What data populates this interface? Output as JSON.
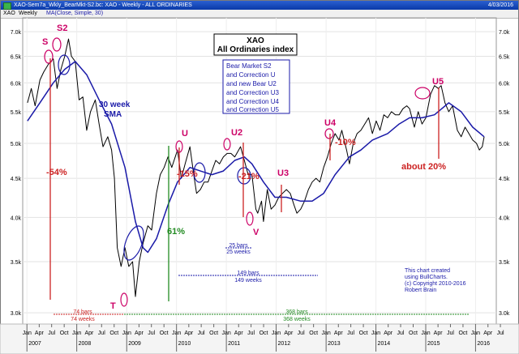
{
  "window": {
    "title": "XAO-Sem7a_Wkly_BearMkt-S2.bc: XAO - Weekly - ALL ORDINARIES",
    "date": "4/03/2016",
    "symbol": "XAO",
    "period": "Weekly",
    "indicator": "MA(Close, Simple, 30)"
  },
  "chart_data": {
    "type": "line",
    "title": "XAO",
    "subtitle": "All Ordinaries index",
    "scale": "log",
    "ylim": [
      2900,
      7300
    ],
    "y_ticks": [
      3000,
      3500,
      4000,
      4500,
      5000,
      5500,
      6000,
      6500,
      7000
    ],
    "y_tick_labels": [
      "3.0k",
      "3.5k",
      "4.0k",
      "4.5k",
      "5.0k",
      "5.5k",
      "6.0k",
      "6.5k",
      "7.0k"
    ],
    "years": [
      "2007",
      "2008",
      "2009",
      "2010",
      "2011",
      "2012",
      "2013",
      "2014",
      "2015",
      "2016"
    ],
    "months": [
      "Jan",
      "Apr",
      "Jul",
      "Oct"
    ],
    "x_start": "2006-12-01",
    "x_end": "2016-06-01",
    "series": [
      {
        "name": "",
        "color": "#000000",
        "points": [
          [
            "2007-01-05",
            5650
          ],
          [
            "2007-02-02",
            5900
          ],
          [
            "2007-03-02",
            5600
          ],
          [
            "2007-04-06",
            6050
          ],
          [
            "2007-05-04",
            6200
          ],
          [
            "2007-06-08",
            6350
          ],
          [
            "2007-07-13",
            6450
          ],
          [
            "2007-08-10",
            5900
          ],
          [
            "2007-09-07",
            6250
          ],
          [
            "2007-10-05",
            6500
          ],
          [
            "2007-11-02",
            6850
          ],
          [
            "2007-11-23",
            6500
          ],
          [
            "2007-12-21",
            6400
          ],
          [
            "2008-01-18",
            5700
          ],
          [
            "2008-02-15",
            5750
          ],
          [
            "2008-03-14",
            5200
          ],
          [
            "2008-04-11",
            5500
          ],
          [
            "2008-05-16",
            5700
          ],
          [
            "2008-06-13",
            5300
          ],
          [
            "2008-07-11",
            4950
          ],
          [
            "2008-08-15",
            5100
          ],
          [
            "2008-09-12",
            4900
          ],
          [
            "2008-10-03",
            4500
          ],
          [
            "2008-10-24",
            3650
          ],
          [
            "2008-11-21",
            3450
          ],
          [
            "2008-12-19",
            3650
          ],
          [
            "2009-01-16",
            3450
          ],
          [
            "2009-02-13",
            3500
          ],
          [
            "2009-03-06",
            3150
          ],
          [
            "2009-04-03",
            3500
          ],
          [
            "2009-05-01",
            3700
          ],
          [
            "2009-06-05",
            3900
          ],
          [
            "2009-07-03",
            3850
          ],
          [
            "2009-08-07",
            4300
          ],
          [
            "2009-09-04",
            4550
          ],
          [
            "2009-10-02",
            4650
          ],
          [
            "2009-10-30",
            4800
          ],
          [
            "2009-11-27",
            4650
          ],
          [
            "2010-01-08",
            4900
          ],
          [
            "2010-02-05",
            4500
          ],
          [
            "2010-03-05",
            4700
          ],
          [
            "2010-04-09",
            4950
          ],
          [
            "2010-05-07",
            4550
          ],
          [
            "2010-05-28",
            4300
          ],
          [
            "2010-06-25",
            4350
          ],
          [
            "2010-07-23",
            4450
          ],
          [
            "2010-08-20",
            4450
          ],
          [
            "2010-09-17",
            4600
          ],
          [
            "2010-10-15",
            4750
          ],
          [
            "2010-11-12",
            4700
          ],
          [
            "2010-12-10",
            4800
          ],
          [
            "2011-01-07",
            4850
          ],
          [
            "2011-02-04",
            4850
          ],
          [
            "2011-03-04",
            4800
          ],
          [
            "2011-04-01",
            4900
          ],
          [
            "2011-04-15",
            4950
          ],
          [
            "2011-05-13",
            4750
          ],
          [
            "2011-06-10",
            4550
          ],
          [
            "2011-07-08",
            4550
          ],
          [
            "2011-08-05",
            4100
          ],
          [
            "2011-08-19",
            4050
          ],
          [
            "2011-09-16",
            4200
          ],
          [
            "2011-09-30",
            3950
          ],
          [
            "2011-10-28",
            4350
          ],
          [
            "2011-11-25",
            4100
          ],
          [
            "2011-12-23",
            4150
          ],
          [
            "2012-01-20",
            4250
          ],
          [
            "2012-02-17",
            4300
          ],
          [
            "2012-03-16",
            4350
          ],
          [
            "2012-04-13",
            4300
          ],
          [
            "2012-05-11",
            4150
          ],
          [
            "2012-06-01",
            4050
          ],
          [
            "2012-06-29",
            4100
          ],
          [
            "2012-07-27",
            4200
          ],
          [
            "2012-08-24",
            4350
          ],
          [
            "2012-09-21",
            4450
          ],
          [
            "2012-10-19",
            4500
          ],
          [
            "2012-11-16",
            4450
          ],
          [
            "2012-12-14",
            4650
          ],
          [
            "2013-01-11",
            4800
          ],
          [
            "2013-02-08",
            5000
          ],
          [
            "2013-03-08",
            5150
          ],
          [
            "2013-04-05",
            5050
          ],
          [
            "2013-04-26",
            5200
          ],
          [
            "2013-05-31",
            4900
          ],
          [
            "2013-06-21",
            4700
          ],
          [
            "2013-07-19",
            5000
          ],
          [
            "2013-08-16",
            5150
          ],
          [
            "2013-09-13",
            5200
          ],
          [
            "2013-10-11",
            5300
          ],
          [
            "2013-11-08",
            5400
          ],
          [
            "2013-12-06",
            5150
          ],
          [
            "2014-01-03",
            5350
          ],
          [
            "2014-01-31",
            5200
          ],
          [
            "2014-02-28",
            5450
          ],
          [
            "2014-03-28",
            5400
          ],
          [
            "2014-04-25",
            5500
          ],
          [
            "2014-05-23",
            5450
          ],
          [
            "2014-06-20",
            5450
          ],
          [
            "2014-07-18",
            5550
          ],
          [
            "2014-08-15",
            5600
          ],
          [
            "2014-09-05",
            5550
          ],
          [
            "2014-10-10",
            5250
          ],
          [
            "2014-11-07",
            5500
          ],
          [
            "2014-12-05",
            5300
          ],
          [
            "2015-01-02",
            5400
          ],
          [
            "2015-02-06",
            5800
          ],
          [
            "2015-03-06",
            5950
          ],
          [
            "2015-04-03",
            5900
          ],
          [
            "2015-04-24",
            5950
          ],
          [
            "2015-05-22",
            5650
          ],
          [
            "2015-06-19",
            5500
          ],
          [
            "2015-07-17",
            5600
          ],
          [
            "2015-08-21",
            5200
          ],
          [
            "2015-09-18",
            5100
          ],
          [
            "2015-10-16",
            5250
          ],
          [
            "2015-11-13",
            5150
          ],
          [
            "2015-12-11",
            5050
          ],
          [
            "2016-01-08",
            5000
          ],
          [
            "2016-01-29",
            4900
          ],
          [
            "2016-02-19",
            4950
          ],
          [
            "2016-03-04",
            5100
          ]
        ]
      },
      {
        "name": "30 week SMA",
        "color": "#1a1aa8",
        "points": [
          [
            "2007-01-05",
            5350
          ],
          [
            "2007-04-06",
            5650
          ],
          [
            "2007-07-13",
            6000
          ],
          [
            "2007-10-05",
            6250
          ],
          [
            "2007-12-21",
            6400
          ],
          [
            "2008-03-14",
            6150
          ],
          [
            "2008-06-13",
            5700
          ],
          [
            "2008-09-12",
            5300
          ],
          [
            "2008-12-19",
            4650
          ],
          [
            "2009-03-06",
            3950
          ],
          [
            "2009-05-01",
            3650
          ],
          [
            "2009-06-05",
            3600
          ],
          [
            "2009-08-07",
            3750
          ],
          [
            "2009-10-30",
            4150
          ],
          [
            "2010-01-08",
            4450
          ],
          [
            "2010-04-09",
            4650
          ],
          [
            "2010-06-25",
            4600
          ],
          [
            "2010-09-17",
            4550
          ],
          [
            "2010-12-10",
            4600
          ],
          [
            "2011-03-04",
            4750
          ],
          [
            "2011-05-13",
            4800
          ],
          [
            "2011-07-08",
            4700
          ],
          [
            "2011-09-30",
            4450
          ],
          [
            "2011-12-23",
            4250
          ],
          [
            "2012-03-16",
            4250
          ],
          [
            "2012-06-29",
            4200
          ],
          [
            "2012-09-21",
            4200
          ],
          [
            "2012-12-14",
            4300
          ],
          [
            "2013-03-08",
            4550
          ],
          [
            "2013-06-21",
            4800
          ],
          [
            "2013-09-13",
            4900
          ],
          [
            "2013-12-06",
            5050
          ],
          [
            "2014-03-28",
            5150
          ],
          [
            "2014-06-20",
            5300
          ],
          [
            "2014-09-05",
            5400
          ],
          [
            "2014-12-05",
            5400
          ],
          [
            "2015-03-06",
            5450
          ],
          [
            "2015-06-19",
            5650
          ],
          [
            "2015-09-18",
            5500
          ],
          [
            "2015-12-11",
            5250
          ],
          [
            "2016-03-04",
            5100
          ]
        ]
      }
    ]
  },
  "annotations": {
    "info_box": [
      "Bear Market S2",
      "and Correction U",
      "and new Bear U2",
      "and Correction U3",
      "and Correction U4",
      "and Correction U5"
    ],
    "sma_label": [
      "30 week",
      "SMA"
    ],
    "peaks": {
      "S": "S",
      "S2": "S2",
      "T": "T",
      "U": "U",
      "U2": "U2",
      "V": "V",
      "U3": "U3",
      "U4": "U4",
      "U5": "U5"
    },
    "pct_54": "-54%",
    "pct_61": "61%",
    "pct_15": "-15%",
    "pct_21": "-21%",
    "pct_10": "-10%",
    "pct_20": "about 20%",
    "bars_74": "74 bars",
    "weeks_74": "74 weeks",
    "bars_25": "25 bars",
    "weeks_25": "25 weeks",
    "bars_149": "149 bars",
    "weeks_149": "149 weeks",
    "bars_368": "368 bars",
    "weeks_368": "368 weeks",
    "credit": [
      "This chart created",
      "using BullCharts.",
      "(c) Copyright 2010-2016",
      "Robert Brain"
    ]
  },
  "colors": {
    "price": "#000000",
    "sma": "#1a1aa8",
    "magenta": "#cc0066",
    "red": "#cc2222",
    "green": "#228b22",
    "navy": "#1a1aa8",
    "titlebar": "#0a3aa8"
  }
}
